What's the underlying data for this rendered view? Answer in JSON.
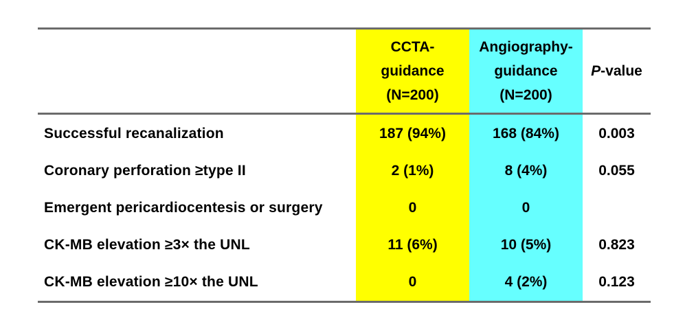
{
  "page": {
    "background": "#ffffff"
  },
  "table": {
    "columns": {
      "label_heading": "",
      "ccta": {
        "heading_lines": [
          "CCTA-",
          "guidance",
          "(N=200)"
        ],
        "bg": "#ffff00"
      },
      "angio": {
        "heading_lines": [
          "Angiography-",
          "guidance",
          "(N=200)"
        ],
        "bg": "#66ffff"
      },
      "pvalue": {
        "heading_italic_part": "P",
        "heading_rest": "-value"
      }
    },
    "rows": [
      {
        "label": "Successful recanalization",
        "ccta": "187 (94%)",
        "angio": "168 (84%)",
        "p": "0.003"
      },
      {
        "label": "Coronary perforation ≥type II",
        "ccta": "2 (1%)",
        "angio": "8 (4%)",
        "p": "0.055"
      },
      {
        "label": "Emergent pericardiocentesis or surgery",
        "ccta": "0",
        "angio": "0",
        "p": ""
      },
      {
        "label": "CK-MB elevation ≥3× the UNL",
        "ccta": "11 (6%)",
        "angio": "10 (5%)",
        "p": "0.823"
      },
      {
        "label": "CK-MB elevation ≥10× the UNL",
        "ccta": "0",
        "angio": "4 (2%)",
        "p": "0.123"
      }
    ],
    "colors": {
      "ccta_bg": "#ffff00",
      "angio_bg": "#66ffff",
      "rule": "#6b6b6b",
      "text": "#000000"
    }
  }
}
